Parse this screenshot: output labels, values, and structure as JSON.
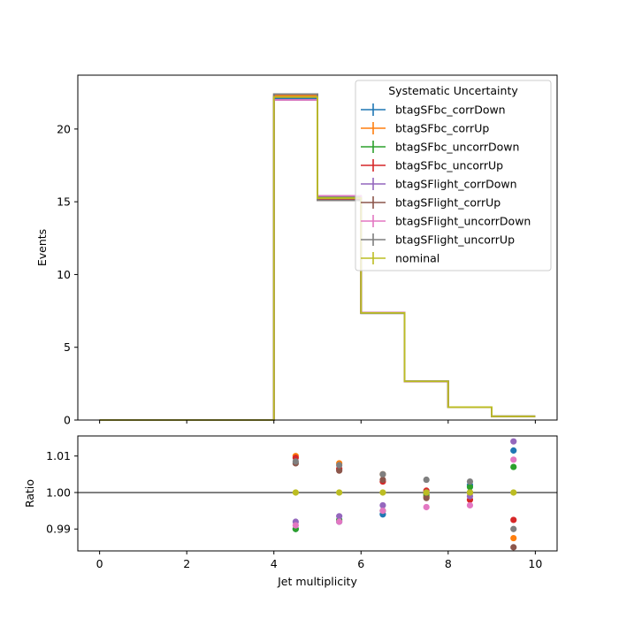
{
  "chart_data": {
    "type": "step",
    "xlabel": "Jet multiplicity",
    "top": {
      "ylabel": "Events",
      "xlim": [
        -0.5,
        10.5
      ],
      "ylim": [
        0,
        23.7
      ],
      "yticks": [
        "0",
        "5",
        "10",
        "15",
        "20"
      ],
      "bin_edges": [
        0,
        1,
        2,
        3,
        4,
        5,
        6,
        7,
        8,
        9,
        10
      ],
      "legend_title": "Systematic Uncertainty",
      "legend_position": "top-right",
      "series": [
        {
          "name": "btagSFbc_corrDown",
          "color": "#1f77b4",
          "values": [
            0,
            0,
            0,
            0,
            22.1,
            15.3,
            7.35,
            2.65,
            0.88,
            0.26
          ]
        },
        {
          "name": "btagSFbc_corrUp",
          "color": "#ff7f0e",
          "values": [
            0,
            0,
            0,
            0,
            22.3,
            15.2,
            7.39,
            2.66,
            0.89,
            0.25
          ]
        },
        {
          "name": "btagSFbc_uncorrDown",
          "color": "#2ca02c",
          "values": [
            0,
            0,
            0,
            0,
            22.0,
            15.3,
            7.38,
            2.66,
            0.89,
            0.26
          ]
        },
        {
          "name": "btagSFbc_uncorrUp",
          "color": "#d62728",
          "values": [
            0,
            0,
            0,
            0,
            22.2,
            15.2,
            7.37,
            2.66,
            0.88,
            0.25
          ]
        },
        {
          "name": "btagSFlight_corrDown",
          "color": "#9467bd",
          "values": [
            0,
            0,
            0,
            0,
            22.0,
            15.4,
            7.37,
            2.66,
            0.89,
            0.26
          ]
        },
        {
          "name": "btagSFlight_corrUp",
          "color": "#8c564b",
          "values": [
            0,
            0,
            0,
            0,
            22.4,
            15.1,
            7.37,
            2.66,
            0.88,
            0.25
          ]
        },
        {
          "name": "btagSFlight_uncorrDown",
          "color": "#e377c2",
          "values": [
            0,
            0,
            0,
            0,
            22.0,
            15.4,
            7.38,
            2.65,
            0.88,
            0.26
          ]
        },
        {
          "name": "btagSFlight_uncorrUp",
          "color": "#7f7f7f",
          "values": [
            0,
            0,
            0,
            0,
            22.4,
            15.1,
            7.33,
            2.67,
            0.89,
            0.25
          ]
        },
        {
          "name": "nominal",
          "color": "#bcbd22",
          "values": [
            0,
            0,
            0,
            0,
            22.2,
            15.25,
            7.36,
            2.66,
            0.885,
            0.255
          ]
        }
      ]
    },
    "bottom": {
      "ylabel": "Ratio",
      "xlim": [
        -0.5,
        10.5
      ],
      "ylim": [
        0.984,
        1.0155
      ],
      "yticks": [
        "0.99",
        "1.00",
        "1.01"
      ],
      "xticks": [
        "0",
        "2",
        "4",
        "6",
        "8",
        "10"
      ],
      "reference_line": 1.0,
      "x": [
        4.5,
        5.5,
        6.5,
        7.5,
        8.5,
        9.5
      ],
      "series": [
        {
          "name": "btagSFbc_corrDown",
          "color": "#1f77b4",
          "values": [
            0.99,
            0.992,
            0.994,
            0.999,
            1.002,
            1.0115
          ]
        },
        {
          "name": "btagSFbc_corrUp",
          "color": "#ff7f0e",
          "values": [
            1.01,
            1.008,
            1.005,
            0.999,
            1.0,
            0.9875
          ]
        },
        {
          "name": "btagSFbc_uncorrDown",
          "color": "#2ca02c",
          "values": [
            0.99,
            0.9925,
            0.995,
            0.9995,
            1.0015,
            1.007
          ]
        },
        {
          "name": "btagSFbc_uncorrUp",
          "color": "#d62728",
          "values": [
            1.0095,
            1.0065,
            1.003,
            1.0005,
            0.998,
            0.9925
          ]
        },
        {
          "name": "btagSFlight_corrDown",
          "color": "#9467bd",
          "values": [
            0.992,
            0.9935,
            0.9965,
            1.0,
            0.999,
            1.014
          ]
        },
        {
          "name": "btagSFlight_corrUp",
          "color": "#8c564b",
          "values": [
            1.008,
            1.006,
            1.0035,
            0.9985,
            1.0,
            0.985
          ]
        },
        {
          "name": "btagSFlight_uncorrDown",
          "color": "#e377c2",
          "values": [
            0.991,
            0.992,
            0.995,
            0.996,
            0.9965,
            1.009
          ]
        },
        {
          "name": "btagSFlight_uncorrUp",
          "color": "#7f7f7f",
          "values": [
            1.0085,
            1.0075,
            1.005,
            1.0035,
            1.003,
            0.99
          ]
        },
        {
          "name": "nominal",
          "color": "#bcbd22",
          "values": [
            1.0,
            1.0,
            1.0,
            1.0,
            1.0,
            1.0
          ]
        }
      ]
    }
  }
}
